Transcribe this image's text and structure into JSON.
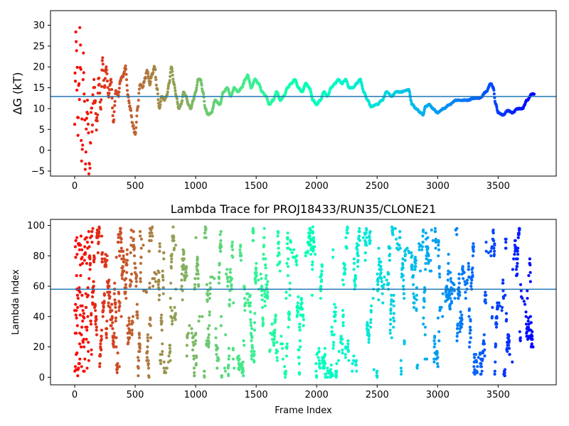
{
  "chart_data": [
    {
      "type": "scatter",
      "title": "",
      "xlabel": "",
      "ylabel": "ΔG (kT)",
      "xlim": [
        -200,
        3980
      ],
      "ylim": [
        -6.2,
        33.5
      ],
      "xticks": [
        0,
        500,
        1000,
        1500,
        2000,
        2500,
        3000,
        3500
      ],
      "yticks": [
        -5,
        0,
        5,
        10,
        15,
        20,
        25,
        30
      ],
      "x_range": [
        0,
        3800
      ],
      "colormap": "rainbow (red at frame 0 → violet at frame 3800)",
      "reference_line": {
        "y": 12.9,
        "color": "#1f77b4"
      },
      "trace_anchors": [
        [
          0,
          15
        ],
        [
          15,
          23
        ],
        [
          30,
          8
        ],
        [
          45,
          24
        ],
        [
          60,
          2
        ],
        [
          75,
          18
        ],
        [
          90,
          -3
        ],
        [
          105,
          12
        ],
        [
          120,
          -5
        ],
        [
          140,
          7
        ],
        [
          160,
          14
        ],
        [
          180,
          6
        ],
        [
          200,
          17
        ],
        [
          215,
          10
        ],
        [
          230,
          22
        ],
        [
          245,
          15
        ],
        [
          260,
          20
        ],
        [
          280,
          13
        ],
        [
          300,
          17
        ],
        [
          320,
          7
        ],
        [
          340,
          14
        ],
        [
          360,
          13
        ],
        [
          380,
          17
        ],
        [
          400,
          18
        ],
        [
          420,
          20
        ],
        [
          440,
          13
        ],
        [
          460,
          10
        ],
        [
          480,
          6
        ],
        [
          500,
          4
        ],
        [
          520,
          10
        ],
        [
          540,
          16
        ],
        [
          560,
          15
        ],
        [
          580,
          17
        ],
        [
          600,
          19
        ],
        [
          620,
          16
        ],
        [
          640,
          18
        ],
        [
          660,
          20
        ],
        [
          680,
          15
        ],
        [
          700,
          10
        ],
        [
          720,
          13
        ],
        [
          740,
          12
        ],
        [
          760,
          13
        ],
        [
          780,
          16
        ],
        [
          800,
          20
        ],
        [
          820,
          16
        ],
        [
          840,
          13
        ],
        [
          860,
          10
        ],
        [
          880,
          11
        ],
        [
          900,
          14
        ],
        [
          920,
          13
        ],
        [
          940,
          11
        ],
        [
          960,
          10
        ],
        [
          980,
          12
        ],
        [
          1000,
          14
        ],
        [
          1020,
          17
        ],
        [
          1040,
          17
        ],
        [
          1060,
          14
        ],
        [
          1080,
          10
        ],
        [
          1100,
          8.5
        ],
        [
          1130,
          9
        ],
        [
          1160,
          12
        ],
        [
          1200,
          11
        ],
        [
          1230,
          14
        ],
        [
          1260,
          15
        ],
        [
          1290,
          13
        ],
        [
          1320,
          15
        ],
        [
          1350,
          14
        ],
        [
          1380,
          15
        ],
        [
          1410,
          17
        ],
        [
          1430,
          18
        ],
        [
          1460,
          15
        ],
        [
          1490,
          17
        ],
        [
          1520,
          16
        ],
        [
          1550,
          14
        ],
        [
          1580,
          13
        ],
        [
          1610,
          11
        ],
        [
          1640,
          12
        ],
        [
          1670,
          14
        ],
        [
          1700,
          12
        ],
        [
          1730,
          13
        ],
        [
          1760,
          15
        ],
        [
          1790,
          16
        ],
        [
          1820,
          17
        ],
        [
          1850,
          15
        ],
        [
          1880,
          14
        ],
        [
          1910,
          16
        ],
        [
          1940,
          15
        ],
        [
          1970,
          12
        ],
        [
          2000,
          11
        ],
        [
          2030,
          12
        ],
        [
          2060,
          14
        ],
        [
          2090,
          13
        ],
        [
          2120,
          15
        ],
        [
          2150,
          16
        ],
        [
          2180,
          17
        ],
        [
          2210,
          16
        ],
        [
          2240,
          17
        ],
        [
          2270,
          15
        ],
        [
          2300,
          15
        ],
        [
          2330,
          16
        ],
        [
          2360,
          17
        ],
        [
          2390,
          14
        ],
        [
          2420,
          12
        ],
        [
          2450,
          10.5
        ],
        [
          2500,
          11
        ],
        [
          2540,
          12
        ],
        [
          2580,
          14
        ],
        [
          2620,
          13
        ],
        [
          2660,
          14
        ],
        [
          2700,
          14
        ],
        [
          2760,
          14.5
        ],
        [
          2790,
          11
        ],
        [
          2820,
          10
        ],
        [
          2860,
          9
        ],
        [
          2880,
          8.5
        ],
        [
          2900,
          10.5
        ],
        [
          2930,
          11
        ],
        [
          2960,
          10
        ],
        [
          3000,
          9
        ],
        [
          3050,
          10
        ],
        [
          3100,
          11
        ],
        [
          3150,
          12
        ],
        [
          3200,
          12
        ],
        [
          3250,
          12
        ],
        [
          3300,
          12.5
        ],
        [
          3350,
          12.5
        ],
        [
          3400,
          14
        ],
        [
          3440,
          16
        ],
        [
          3460,
          15
        ],
        [
          3480,
          11
        ],
        [
          3500,
          9
        ],
        [
          3540,
          8.5
        ],
        [
          3580,
          9.5
        ],
        [
          3620,
          9
        ],
        [
          3660,
          10
        ],
        [
          3700,
          10
        ],
        [
          3740,
          12
        ],
        [
          3780,
          13.5
        ]
      ]
    },
    {
      "type": "scatter",
      "title": "Lambda Trace for PROJ18433/RUN35/CLONE21",
      "xlabel": "Frame Index",
      "ylabel": "Lambda Index",
      "xlim": [
        -200,
        3980
      ],
      "ylim": [
        -5,
        104
      ],
      "xticks": [
        0,
        500,
        1000,
        1500,
        2000,
        2500,
        3000,
        3500
      ],
      "yticks": [
        0,
        20,
        40,
        60,
        80,
        100
      ],
      "x_range": [
        0,
        3800
      ],
      "lambda_range": [
        0,
        99
      ],
      "colormap": "rainbow (red at frame 0 → violet at frame 3800)",
      "reference_line": {
        "y": 58,
        "color": "#1f77b4"
      },
      "point_count_estimate": 3800
    }
  ]
}
